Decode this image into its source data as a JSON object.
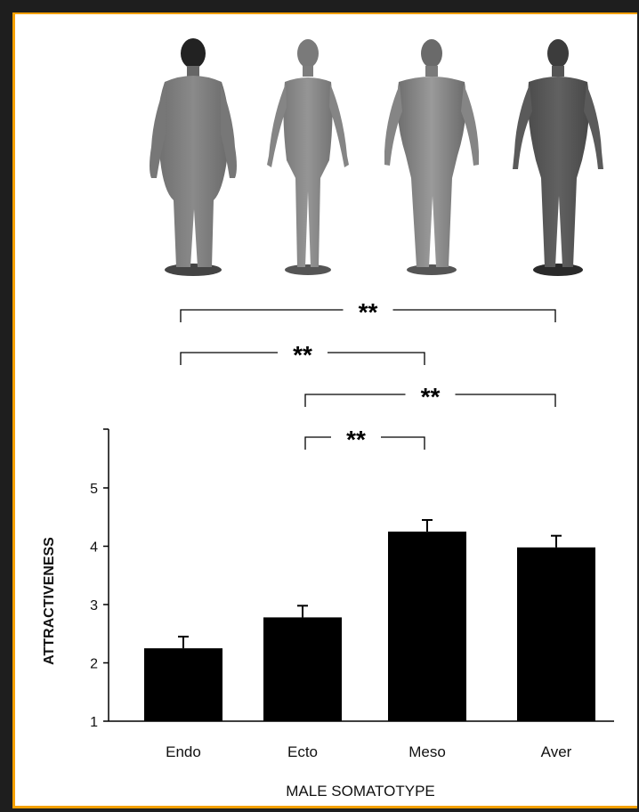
{
  "chart_data": {
    "type": "bar",
    "categories": [
      "Endo",
      "Ecto",
      "Meso",
      "Aver"
    ],
    "values": [
      2.25,
      2.78,
      4.25,
      3.98
    ],
    "errors": [
      0.2,
      0.2,
      0.2,
      0.2
    ],
    "xlabel": "MALE SOMATOTYPE",
    "ylabel": "ATTRACTIVENESS",
    "yticks": [
      1,
      2,
      3,
      4,
      5
    ],
    "ylim": [
      1,
      6
    ],
    "grid": false,
    "bar_color": "#000000",
    "significance": [
      {
        "from": "Endo",
        "to": "Aver",
        "label": "**"
      },
      {
        "from": "Endo",
        "to": "Meso",
        "label": "**"
      },
      {
        "from": "Ecto",
        "to": "Aver",
        "label": "**"
      },
      {
        "from": "Ecto",
        "to": "Meso",
        "label": "**"
      }
    ],
    "figure_images": [
      "endomorph-figure",
      "ectomorph-figure",
      "mesomorph-figure",
      "average-figure"
    ]
  },
  "colors": {
    "frame": "#1e1e1e",
    "border": "#f5a000",
    "background": "#ffffff"
  }
}
